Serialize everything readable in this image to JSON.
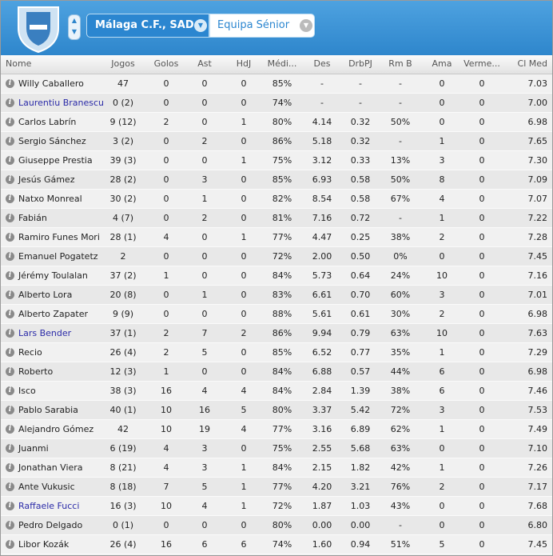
{
  "header": {
    "club": "Málaga C.F., SAD",
    "squad": "Equipa Sénior"
  },
  "table": {
    "columns": [
      "Nome",
      "Jogos",
      "Golos",
      "Ast",
      "HdJ",
      "Médi...",
      "Des",
      "DrbPJ",
      "Rm B",
      "Ama",
      "Verme...",
      "Cl Med"
    ],
    "rows": [
      {
        "cells": [
          "Willy Caballero",
          "47",
          "0",
          "0",
          "0",
          "85%",
          "-",
          "-",
          "-",
          "0",
          "0",
          "7.03"
        ]
      },
      {
        "cells": [
          "Laurentiu Branescu",
          "0 (2)",
          "0",
          "0",
          "0",
          "74%",
          "-",
          "-",
          "-",
          "0",
          "0",
          "7.00"
        ],
        "color": "#2b2ba8"
      },
      {
        "cells": [
          "Carlos Labrín",
          "9 (12)",
          "2",
          "0",
          "1",
          "80%",
          "4.14",
          "0.32",
          "50%",
          "0",
          "0",
          "6.98"
        ]
      },
      {
        "cells": [
          "Sergio Sánchez",
          "3 (2)",
          "0",
          "2",
          "0",
          "86%",
          "5.18",
          "0.32",
          "-",
          "1",
          "0",
          "7.65"
        ]
      },
      {
        "cells": [
          "Giuseppe Prestia",
          "39 (3)",
          "0",
          "0",
          "1",
          "75%",
          "3.12",
          "0.33",
          "13%",
          "3",
          "0",
          "7.30"
        ]
      },
      {
        "cells": [
          "Jesús Gámez",
          "28 (2)",
          "0",
          "3",
          "0",
          "85%",
          "6.93",
          "0.58",
          "50%",
          "8",
          "0",
          "7.09"
        ]
      },
      {
        "cells": [
          "Natxo Monreal",
          "30 (2)",
          "0",
          "1",
          "0",
          "82%",
          "8.54",
          "0.58",
          "67%",
          "4",
          "0",
          "7.07"
        ]
      },
      {
        "cells": [
          "Fabián",
          "4 (7)",
          "0",
          "2",
          "0",
          "81%",
          "7.16",
          "0.72",
          "-",
          "1",
          "0",
          "7.22"
        ]
      },
      {
        "cells": [
          "Ramiro Funes Mori",
          "28 (1)",
          "4",
          "0",
          "1",
          "77%",
          "4.47",
          "0.25",
          "38%",
          "2",
          "0",
          "7.28"
        ]
      },
      {
        "cells": [
          "Emanuel Pogatetz",
          "2",
          "0",
          "0",
          "0",
          "72%",
          "2.00",
          "0.50",
          "0%",
          "0",
          "0",
          "7.45"
        ]
      },
      {
        "cells": [
          "Jérémy Toulalan",
          "37 (2)",
          "1",
          "0",
          "0",
          "84%",
          "5.73",
          "0.64",
          "24%",
          "10",
          "0",
          "7.16"
        ]
      },
      {
        "cells": [
          "Alberto Lora",
          "20 (8)",
          "0",
          "1",
          "0",
          "83%",
          "6.61",
          "0.70",
          "60%",
          "3",
          "0",
          "7.01"
        ]
      },
      {
        "cells": [
          "Alberto Zapater",
          "9 (9)",
          "0",
          "0",
          "0",
          "88%",
          "5.61",
          "0.61",
          "30%",
          "2",
          "0",
          "6.98"
        ]
      },
      {
        "cells": [
          "Lars Bender",
          "37 (1)",
          "2",
          "7",
          "2",
          "86%",
          "9.94",
          "0.79",
          "63%",
          "10",
          "0",
          "7.63"
        ],
        "color": "#2b2ba8"
      },
      {
        "cells": [
          "Recio",
          "26 (4)",
          "2",
          "5",
          "0",
          "85%",
          "6.52",
          "0.77",
          "35%",
          "1",
          "0",
          "7.29"
        ]
      },
      {
        "cells": [
          "Roberto",
          "12 (3)",
          "1",
          "0",
          "0",
          "84%",
          "6.88",
          "0.57",
          "44%",
          "6",
          "0",
          "6.98"
        ]
      },
      {
        "cells": [
          "Isco",
          "38 (3)",
          "16",
          "4",
          "4",
          "84%",
          "2.84",
          "1.39",
          "38%",
          "6",
          "0",
          "7.46"
        ]
      },
      {
        "cells": [
          "Pablo Sarabia",
          "40 (1)",
          "10",
          "16",
          "5",
          "80%",
          "3.37",
          "5.42",
          "72%",
          "3",
          "0",
          "7.53"
        ]
      },
      {
        "cells": [
          "Alejandro Gómez",
          "42",
          "10",
          "19",
          "4",
          "77%",
          "3.16",
          "6.89",
          "62%",
          "1",
          "0",
          "7.49"
        ]
      },
      {
        "cells": [
          "Juanmi",
          "6 (19)",
          "4",
          "3",
          "0",
          "75%",
          "2.55",
          "5.68",
          "63%",
          "0",
          "0",
          "7.10"
        ]
      },
      {
        "cells": [
          "Jonathan Viera",
          "8 (21)",
          "4",
          "3",
          "1",
          "84%",
          "2.15",
          "1.82",
          "42%",
          "1",
          "0",
          "7.26"
        ]
      },
      {
        "cells": [
          "Ante Vukusic",
          "8 (18)",
          "7",
          "5",
          "1",
          "77%",
          "4.20",
          "3.21",
          "76%",
          "2",
          "0",
          "7.17"
        ]
      },
      {
        "cells": [
          "Raffaele Fucci",
          "16 (3)",
          "10",
          "4",
          "1",
          "72%",
          "1.87",
          "1.03",
          "43%",
          "0",
          "0",
          "7.68"
        ],
        "color": "#2b2ba8"
      },
      {
        "cells": [
          "Pedro Delgado",
          "0 (1)",
          "0",
          "0",
          "0",
          "80%",
          "0.00",
          "0.00",
          "-",
          "0",
          "0",
          "6.80"
        ]
      },
      {
        "cells": [
          "Libor Kozák",
          "26 (4)",
          "16",
          "6",
          "6",
          "74%",
          "1.60",
          "0.94",
          "51%",
          "5",
          "0",
          "7.45"
        ]
      }
    ]
  }
}
